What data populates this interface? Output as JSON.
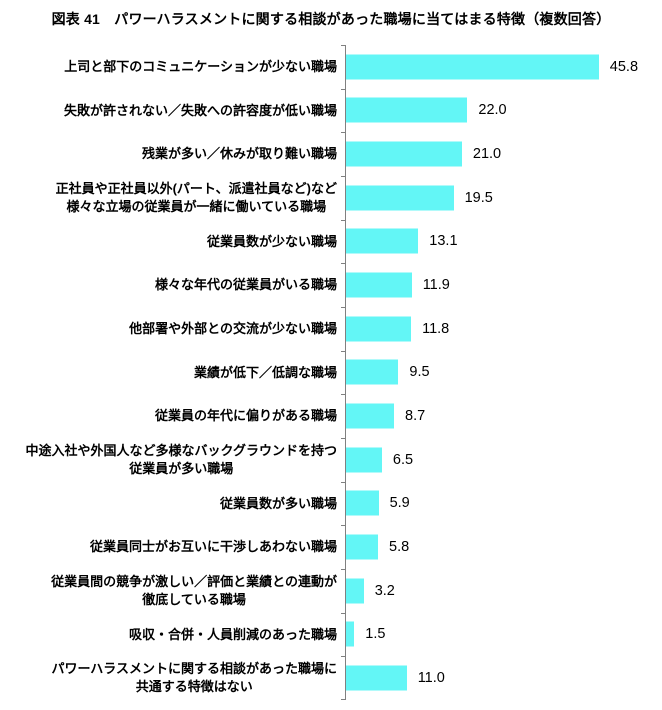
{
  "title": "図表 41　パワーハラスメントに関する相談があった職場に当てはまる特徴（複数回答）",
  "colors": {
    "bar": "#63F6F6",
    "axis": "#808080",
    "text": "#000000",
    "background": "#FFFFFF"
  },
  "chart_data": {
    "type": "bar",
    "orientation": "horizontal",
    "title": "図表 41　パワーハラスメントに関する相談があった職場に当てはまる特徴（複数回答）",
    "xlabel": "",
    "ylabel": "",
    "xlim": [
      0,
      57
    ],
    "grid": false,
    "legend": false,
    "value_label_position": "right-of-bar",
    "categories": [
      "上司と部下のコミュニケーションが少ない職場",
      "失敗が許されない／失敗への許容度が低い職場",
      "残業が多い／休みが取り難い職場",
      "正社員や正社員以外(パート、派遣社員など)など\n様々な立場の従業員が一緒に働いている職場",
      "従業員数が少ない職場",
      "様々な年代の従業員がいる職場",
      "他部署や外部との交流が少ない職場",
      "業績が低下／低調な職場",
      "従業員の年代に偏りがある職場",
      "中途入社や外国人など多様なバックグラウンドを持つ\n従業員が多い職場",
      "従業員数が多い職場",
      "従業員同士がお互いに干渉しあわない職場",
      "従業員間の競争が激しい／評価と業績との連動が\n徹底している職場",
      "吸収・合併・人員削減のあった職場",
      "パワーハラスメントに関する相談があった職場に\n共通する特徴はない"
    ],
    "values": [
      45.8,
      22.0,
      21.0,
      19.5,
      13.1,
      11.9,
      11.8,
      9.5,
      8.7,
      6.5,
      5.9,
      5.8,
      3.2,
      1.5,
      11.0
    ],
    "value_labels": [
      "45.8",
      "22.0",
      "21.0",
      "19.5",
      "13.1",
      "11.9",
      "11.8",
      "9.5",
      "8.7",
      "6.5",
      "5.9",
      "5.8",
      "3.2",
      "1.5",
      "11.0"
    ]
  }
}
